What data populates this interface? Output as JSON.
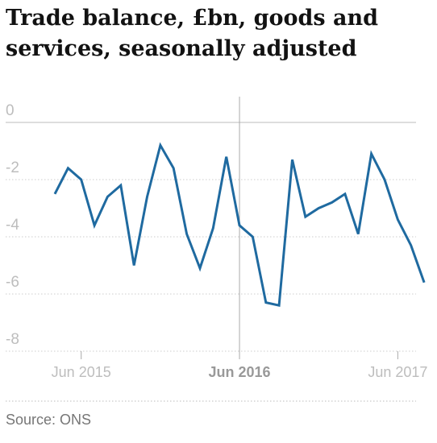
{
  "title": "Trade balance, £bn, goods and services, seasonally adjusted",
  "source": "Source: ONS",
  "colors": {
    "line": "#1f6aa0",
    "tick_text": "#bdbdbd",
    "tick_text_bold": "#999999",
    "grid": "#cccccc",
    "zero": "#bbbbbb"
  },
  "chart_data": {
    "type": "line",
    "title": "Trade balance, £bn, goods and services, seasonally adjusted",
    "xlabel": "",
    "ylabel": "",
    "ylim": [
      -8,
      0
    ],
    "yticks": [
      0,
      -2,
      -4,
      -6,
      -8
    ],
    "xticks": [
      {
        "label": "Jun 2015",
        "x": "2015-06",
        "bold": false
      },
      {
        "label": "Jun 2016",
        "x": "2016-06",
        "bold": true
      },
      {
        "label": "Jun 2017",
        "x": "2017-06",
        "bold": false
      }
    ],
    "grid": true,
    "series": [
      {
        "x": [
          "2015-04",
          "2015-05",
          "2015-06",
          "2015-07",
          "2015-08",
          "2015-09",
          "2015-10",
          "2015-11",
          "2015-12",
          "2016-01",
          "2016-02",
          "2016-03",
          "2016-04",
          "2016-05",
          "2016-06",
          "2016-07",
          "2016-08",
          "2016-09",
          "2016-10",
          "2016-11",
          "2016-12",
          "2017-01",
          "2017-02",
          "2017-03",
          "2017-04",
          "2017-05",
          "2017-06",
          "2017-07",
          "2017-08"
        ],
        "values": [
          -2.5,
          -1.6,
          -2.0,
          -3.6,
          -2.6,
          -2.2,
          -5.0,
          -2.6,
          -0.8,
          -1.6,
          -3.9,
          -5.1,
          -3.7,
          -1.2,
          -3.6,
          -4.0,
          -6.3,
          -6.4,
          -1.3,
          -3.3,
          -3.0,
          -2.8,
          -2.5,
          -3.9,
          -1.1,
          -2.0,
          -3.4,
          -4.3,
          -5.6
        ]
      }
    ]
  }
}
